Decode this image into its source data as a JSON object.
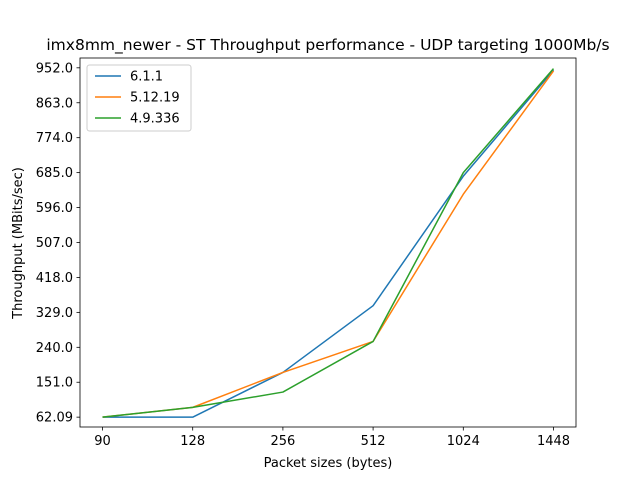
{
  "chart_data": {
    "type": "line",
    "title": "imx8mm_newer - ST Throughput performance - UDP targeting 1000Mb/s",
    "xlabel": "Packet sizes (bytes)",
    "ylabel": "Throughput (MBits/sec)",
    "categories": [
      "90",
      "128",
      "256",
      "512",
      "1024",
      "1448"
    ],
    "y_ticks": [
      "62.09",
      "151.0",
      "240.0",
      "329.0",
      "418.0",
      "507.0",
      "596.0",
      "685.0",
      "774.0",
      "863.0",
      "952.0"
    ],
    "ylim": [
      37,
      977
    ],
    "grid": false,
    "legend_position": "upper-left",
    "series": [
      {
        "name": "6.1.1",
        "color": "#1f77b4",
        "values": [
          62.09,
          62.09,
          176,
          346,
          676,
          946
        ]
      },
      {
        "name": "5.12.19",
        "color": "#ff7f0e",
        "values": [
          62.09,
          87,
          176,
          255,
          630,
          944
        ]
      },
      {
        "name": "4.9.336",
        "color": "#2ca02c",
        "values": [
          62.09,
          87,
          126,
          255,
          685,
          950
        ]
      }
    ]
  }
}
